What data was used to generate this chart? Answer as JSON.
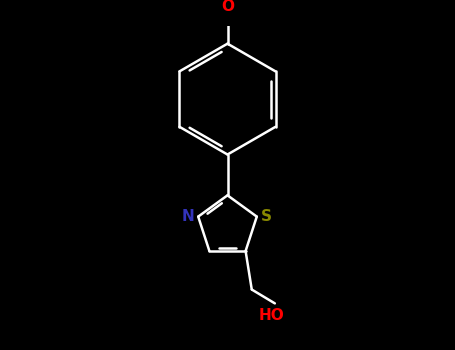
{
  "background_color": "#000000",
  "bond_color": "#ffffff",
  "atom_colors": {
    "O_top": "#ff0000",
    "N": "#3333bb",
    "S": "#888800",
    "O_bottom": "#ff0000"
  },
  "figsize": [
    4.55,
    3.5
  ],
  "dpi": 100,
  "lw": 1.8,
  "font_size": 11
}
